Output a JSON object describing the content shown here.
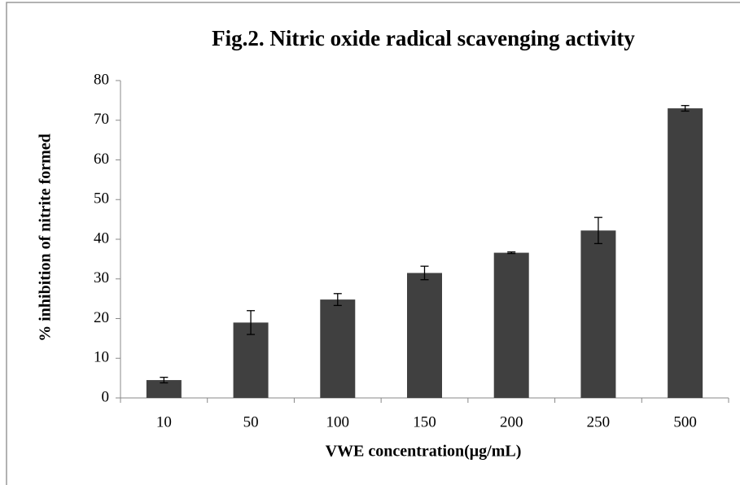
{
  "chart_data": {
    "type": "bar",
    "title": "Fig.2. Nitric oxide radical scavenging activity",
    "xlabel": "VWE concentration(μg/mL)",
    "ylabel": "% inhibition of nitrite formed",
    "categories": [
      "10",
      "50",
      "100",
      "150",
      "200",
      "250",
      "500"
    ],
    "values": [
      4.5,
      19,
      24.8,
      31.5,
      36.6,
      42.2,
      73
    ],
    "errors": [
      0.7,
      3,
      1.5,
      1.7,
      0.2,
      3.3,
      0.7
    ],
    "color": "#404040",
    "ylim": [
      0,
      80
    ],
    "yticks": [
      0,
      10,
      20,
      30,
      40,
      50,
      60,
      70,
      80
    ],
    "grid": false
  }
}
